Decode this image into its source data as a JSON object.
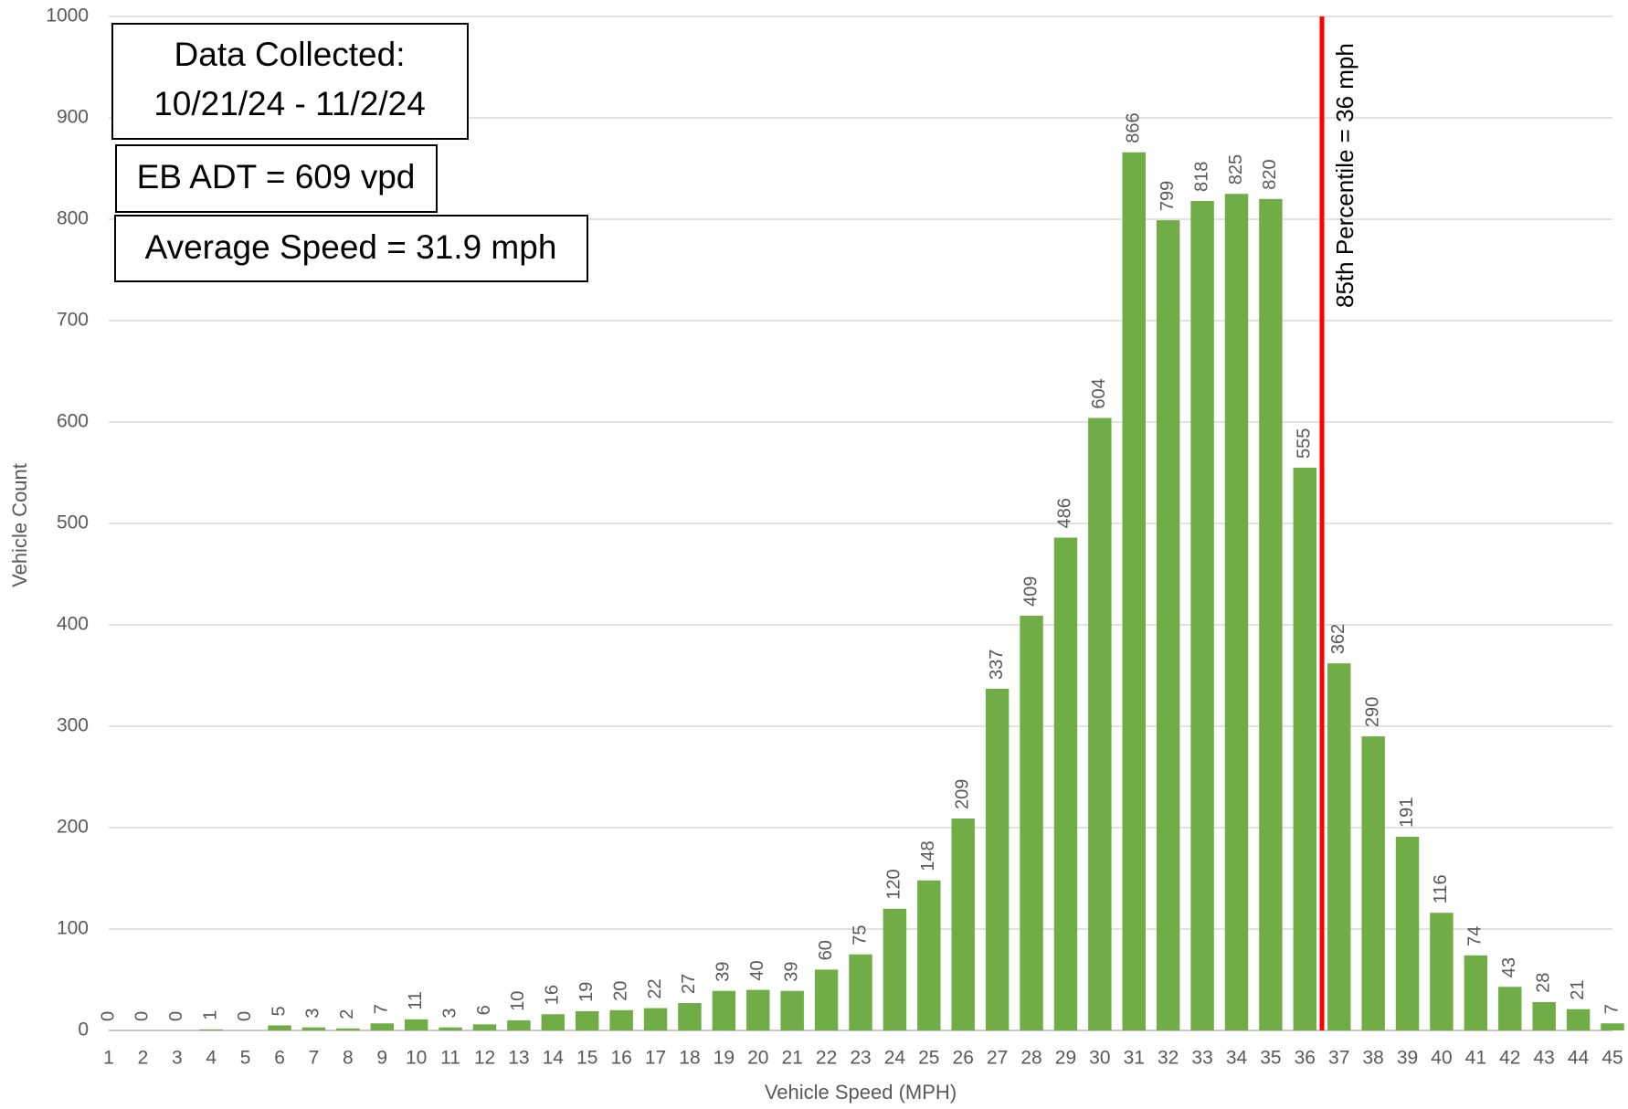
{
  "chart_data": {
    "type": "bar",
    "categories": [
      1,
      2,
      3,
      4,
      5,
      6,
      7,
      8,
      9,
      10,
      11,
      12,
      13,
      14,
      15,
      16,
      17,
      18,
      19,
      20,
      21,
      22,
      23,
      24,
      25,
      26,
      27,
      28,
      29,
      30,
      31,
      32,
      33,
      34,
      35,
      36,
      37,
      38,
      39,
      40,
      41,
      42,
      43,
      44,
      45
    ],
    "values": [
      0,
      0,
      0,
      1,
      0,
      5,
      3,
      2,
      7,
      11,
      3,
      6,
      10,
      16,
      19,
      20,
      22,
      27,
      39,
      40,
      39,
      60,
      75,
      120,
      148,
      209,
      337,
      409,
      486,
      604,
      866,
      799,
      818,
      825,
      820,
      555,
      362,
      290,
      191,
      116,
      74,
      43,
      28,
      21,
      7
    ],
    "color": "#70ad47",
    "ylim": [
      0,
      1000
    ],
    "yticks": [
      0,
      100,
      200,
      300,
      400,
      500,
      600,
      700,
      800,
      900,
      1000
    ],
    "grid": true,
    "x_label": "Vehicle Speed (MPH)",
    "y_label": "Vehicle Count",
    "annotations": [
      "Data Collected:",
      "10/21/24 - 11/2/24",
      "EB ADT = 609 vpd",
      "Average Speed = 31.9 mph"
    ],
    "percentile_line": {
      "x": 36.5,
      "label": "85th Percentile = 36 mph",
      "color": "#ff0000"
    }
  }
}
